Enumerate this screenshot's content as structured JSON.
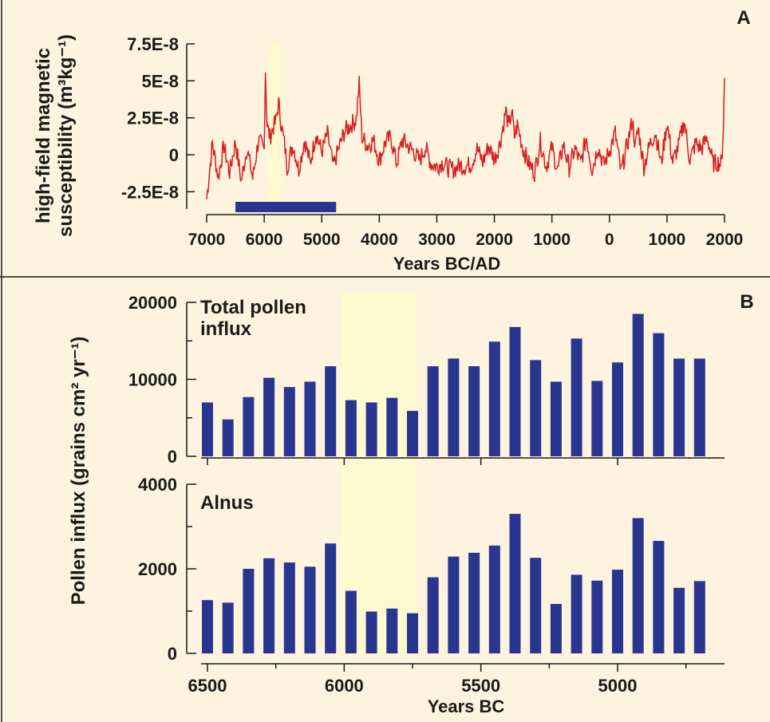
{
  "colors": {
    "background": "#fdf3de",
    "highlight": "#fff9d0",
    "susceptibility_line": "#d81e20",
    "bars": "#2a3590",
    "marker_bar": "#2a3590",
    "axis": "#1a1a1a"
  },
  "chart_data": [
    {
      "id": "A",
      "type": "line",
      "panel_letter": "A",
      "ylabel_line1": "high-field magnetic",
      "ylabel_line2": "susceptibility (m³kg⁻¹)",
      "xlabel": "Years BC/AD",
      "x_direction": "reversed (BC decreasing to AD)",
      "xlim": [
        -7000,
        2000
      ],
      "ylim": [
        -3.2e-08,
        7.5e-08
      ],
      "xticks": [
        -7000,
        -6000,
        -5000,
        -4000,
        -3000,
        -2000,
        -1000,
        0,
        1000,
        2000
      ],
      "xtick_labels": [
        "7000",
        "6000",
        "5000",
        "4000",
        "3000",
        "2000",
        "1000",
        "0",
        "1000",
        "2000"
      ],
      "yticks": [
        -2.5e-08,
        0,
        2.5e-08,
        5e-08,
        7.5e-08
      ],
      "ytick_labels": [
        "-2.5E-8",
        "0",
        "2.5E-8",
        "5E-8",
        "7.5E-8"
      ],
      "highlight_x": [
        -6000,
        -5600
      ],
      "marker_bar_x": [
        -6500,
        -4750
      ],
      "series": [
        {
          "x": [
            -7000,
            -6900,
            -6800,
            -6700,
            -6600,
            -6500,
            -6400,
            -6300,
            -6200,
            -6100,
            -6000,
            -5980,
            -5950,
            -5900,
            -5850,
            -5800,
            -5750,
            -5700,
            -5650,
            -5600,
            -5500,
            -5400,
            -5300,
            -5200,
            -5100,
            -5000,
            -4900,
            -4800,
            -4700,
            -4600,
            -4500,
            -4400,
            -4350,
            -4300,
            -4200,
            -4100,
            -4000,
            -3900,
            -3800,
            -3700,
            -3600,
            -3500,
            -3400,
            -3300,
            -3200,
            -3100,
            -3000,
            -2900,
            -2800,
            -2700,
            -2600,
            -2500,
            -2400,
            -2300,
            -2200,
            -2100,
            -2000,
            -1900,
            -1800,
            -1750,
            -1700,
            -1650,
            -1600,
            -1500,
            -1400,
            -1300,
            -1200,
            -1100,
            -1000,
            -900,
            -800,
            -700,
            -600,
            -500,
            -400,
            -300,
            -200,
            -100,
            0,
            100,
            200,
            300,
            400,
            450,
            500,
            600,
            700,
            800,
            900,
            1000,
            1100,
            1200,
            1300,
            1400,
            1500,
            1600,
            1700,
            1800,
            1900,
            1950,
            1980,
            2000
          ],
          "y": [
            -3e-08,
            8e-09,
            -1.5e-08,
            6e-09,
            -1.2e-08,
            9e-09,
            -1.8e-08,
            5e-09,
            -1.6e-08,
            1e-08,
            3e-09,
            5.8e-08,
            2e-08,
            1.2e-08,
            1.8e-08,
            2.2e-08,
            3.5e-08,
            2e-08,
            8e-09,
            -8e-09,
            7e-09,
            -1e-08,
            1e-08,
            -6e-09,
            1.5e-08,
            2e-09,
            1.4e-08,
            -8e-09,
            5e-09,
            1.6e-08,
            2e-08,
            2.4e-08,
            4.8e-08,
            1.2e-08,
            6e-09,
            1e-08,
            -4e-09,
            8e-09,
            1.2e-08,
            -6e-09,
            1e-08,
            6e-09,
            2e-09,
            -4e-09,
            5e-09,
            -6e-09,
            -8e-09,
            -5e-09,
            -9e-09,
            -1e-08,
            -7e-09,
            -8e-09,
            -6e-09,
            4e-09,
            -5e-09,
            6e-09,
            -3e-09,
            8e-09,
            3e-08,
            1.8e-08,
            3e-08,
            1.2e-08,
            2e-08,
            4e-09,
            -6e-09,
            -1.2e-08,
            9e-09,
            -8e-09,
            5e-09,
            -1.1e-08,
            7e-09,
            -9e-09,
            4e-09,
            -6e-09,
            1.2e-08,
            -1e-08,
            6e-09,
            -7e-09,
            3e-09,
            1.5e-08,
            -1.2e-08,
            5e-09,
            2.4e-08,
            5e-09,
            1.8e-08,
            -8e-09,
            7e-09,
            1.5e-08,
            -6e-09,
            2.2e-08,
            -5e-09,
            6e-09,
            2.3e-08,
            -4e-09,
            8e-09,
            4e-09,
            1.2e-08,
            -6e-09,
            -5e-09,
            -6e-09,
            2e-08,
            5.2e-08
          ]
        }
      ]
    },
    {
      "id": "B-total",
      "type": "bar",
      "panel_letter": "B",
      "label_line1": "Total pollen",
      "label_line2": "influx",
      "ylim": [
        0,
        20000
      ],
      "yticks": [
        0,
        10000,
        20000
      ],
      "ytick_labels": [
        "0",
        "10000",
        "20000"
      ],
      "x": [
        6500,
        6425,
        6350,
        6275,
        6200,
        6125,
        6050,
        5975,
        5900,
        5825,
        5750,
        5675,
        5600,
        5525,
        5450,
        5375,
        5300,
        5225,
        5150,
        5075,
        5000,
        4925,
        4850,
        4775,
        4700
      ],
      "values": [
        7000,
        4800,
        7700,
        10200,
        9000,
        9700,
        11700,
        7300,
        7000,
        7600,
        5900,
        11700,
        12700,
        11700,
        14900,
        16800,
        12500,
        9700,
        15300,
        9800,
        12200,
        18500,
        16000,
        12700,
        12700
      ]
    },
    {
      "id": "B-alnus",
      "type": "bar",
      "label": "Alnus",
      "ylabel": "Pollen influx (grains cm² yr⁻¹)",
      "xlabel": "Years BC",
      "xlim": [
        6500,
        4600
      ],
      "xticks": [
        6500,
        6000,
        5500,
        5000
      ],
      "xtick_labels": [
        "6500",
        "6000",
        "5500",
        "5000"
      ],
      "ylim": [
        0,
        4000
      ],
      "yticks": [
        0,
        2000,
        4000
      ],
      "ytick_labels": [
        "0",
        "2000",
        "4000"
      ],
      "highlight_x": [
        6010,
        5735
      ],
      "x": [
        6500,
        6425,
        6350,
        6275,
        6200,
        6125,
        6050,
        5975,
        5900,
        5825,
        5750,
        5675,
        5600,
        5525,
        5450,
        5375,
        5300,
        5225,
        5150,
        5075,
        5000,
        4925,
        4850,
        4775,
        4700
      ],
      "values": [
        1260,
        1200,
        2000,
        2250,
        2150,
        2050,
        2600,
        1480,
        990,
        1060,
        950,
        1800,
        2290,
        2380,
        2550,
        3300,
        2260,
        1170,
        1860,
        1720,
        1980,
        3200,
        2660,
        1550,
        1710
      ]
    }
  ]
}
